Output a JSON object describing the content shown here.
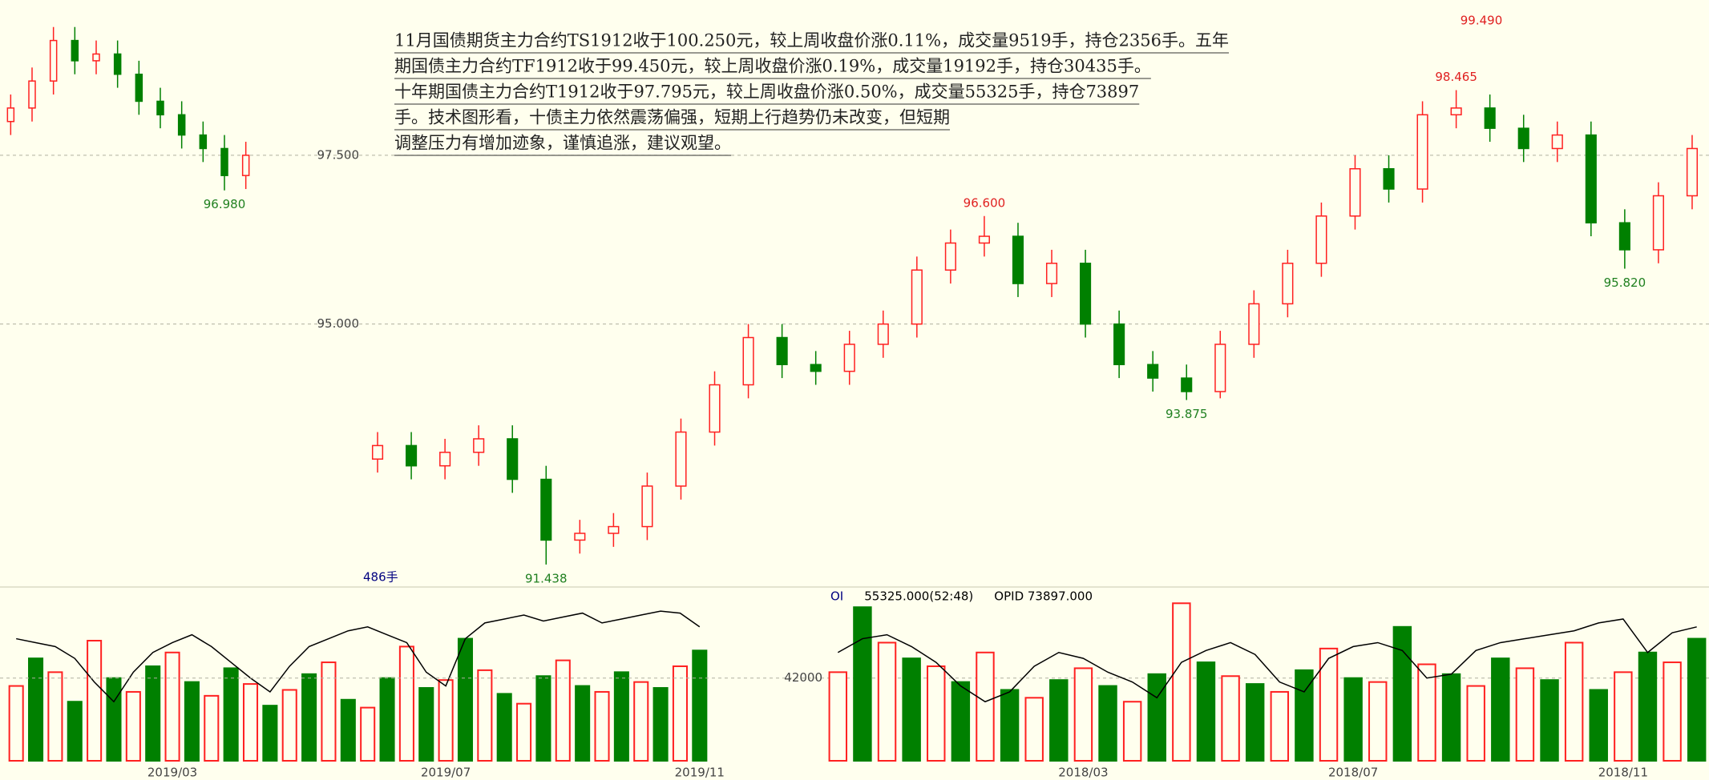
{
  "chart_data": [
    {
      "type": "candlestick",
      "open": [
        93.0,
        93.2,
        92.9,
        93.1,
        93.3,
        92.7,
        91.8,
        91.9,
        92.0,
        92.6,
        93.4,
        94.1,
        94.8,
        94.4,
        94.3,
        94.7,
        95.0,
        95.8,
        96.2,
        96.3,
        95.6,
        95.9,
        95.0,
        94.4,
        94.2,
        94.0,
        94.7,
        95.3,
        95.9,
        96.6,
        97.3,
        97.0,
        98.1,
        98.2,
        97.9,
        97.6,
        97.8,
        96.5,
        96.1,
        96.9
      ],
      "high": [
        93.4,
        93.4,
        93.3,
        93.5,
        93.5,
        92.9,
        92.1,
        92.2,
        92.8,
        93.6,
        94.3,
        95.0,
        95.0,
        94.6,
        94.9,
        95.2,
        96.0,
        96.4,
        96.6,
        96.5,
        96.1,
        96.1,
        95.2,
        94.6,
        94.4,
        94.9,
        95.5,
        96.1,
        96.8,
        97.5,
        97.5,
        98.3,
        98.465,
        98.4,
        98.1,
        98.0,
        98.0,
        96.7,
        97.1,
        97.8
      ],
      "low": [
        92.8,
        92.7,
        92.7,
        92.9,
        92.5,
        91.438,
        91.6,
        91.7,
        91.8,
        92.4,
        93.2,
        93.9,
        94.2,
        94.1,
        94.1,
        94.5,
        94.8,
        95.6,
        96.0,
        95.4,
        95.4,
        94.8,
        94.2,
        94.0,
        93.875,
        93.9,
        94.5,
        95.1,
        95.7,
        96.4,
        96.8,
        96.8,
        97.9,
        97.7,
        97.4,
        97.4,
        96.3,
        95.82,
        95.9,
        96.7
      ],
      "close": [
        93.2,
        92.9,
        93.1,
        93.3,
        92.7,
        91.8,
        91.9,
        92.0,
        92.6,
        93.4,
        94.1,
        94.8,
        94.4,
        94.3,
        94.7,
        95.0,
        95.8,
        96.2,
        96.3,
        95.6,
        95.9,
        95.0,
        94.4,
        94.2,
        94.0,
        94.7,
        95.3,
        95.9,
        96.6,
        97.3,
        97.0,
        98.1,
        98.2,
        97.9,
        97.6,
        97.8,
        96.5,
        96.1,
        96.9,
        97.6
      ],
      "up_color": "#ff2020",
      "down_color": "#008000",
      "ylim": [
        91.2,
        99.8
      ],
      "yticks": [
        {
          "value": 95,
          "label": "95.000"
        },
        {
          "value": 97.5,
          "label": "97.500"
        }
      ],
      "grid": true,
      "annotations": [
        {
          "text": "96.600",
          "value": 96.6
        },
        {
          "text": "93.875",
          "value": 93.875
        },
        {
          "text": "98.465",
          "value": 98.465
        },
        {
          "text": "95.820",
          "value": 95.82
        },
        {
          "text": "91.438",
          "value": 91.438
        },
        {
          "text": "99.490",
          "value": 99.49
        }
      ]
    },
    {
      "type": "candlestick",
      "open": [
        98.0,
        98.2,
        98.6,
        99.2,
        98.9,
        99.0,
        98.7,
        98.3,
        98.1,
        97.8,
        97.6,
        97.2
      ],
      "high": [
        98.4,
        98.8,
        99.4,
        99.4,
        99.2,
        99.2,
        98.9,
        98.5,
        98.3,
        98.0,
        97.8,
        97.7
      ],
      "low": [
        97.8,
        98.0,
        98.4,
        98.7,
        98.7,
        98.5,
        98.1,
        97.9,
        97.6,
        97.4,
        96.98,
        97.0
      ],
      "close": [
        98.2,
        98.6,
        99.2,
        98.9,
        99.0,
        98.7,
        98.3,
        98.1,
        97.8,
        97.6,
        97.2,
        97.5
      ],
      "up_color": "#ff2020",
      "down_color": "#008000",
      "ylim": [
        91.2,
        99.8
      ],
      "annotations": [
        {
          "text": "96.980",
          "value": 96.98
        }
      ]
    },
    {
      "type": "bar",
      "categories": [
        null,
        null,
        null,
        null,
        null,
        null,
        null,
        null,
        "2019/03",
        null,
        null,
        null,
        null,
        null,
        null,
        null,
        null,
        null,
        null,
        null,
        null,
        null,
        "2019/07",
        null,
        null,
        null,
        null,
        null,
        null,
        null,
        null,
        null,
        null,
        null,
        null,
        "2019/11"
      ],
      "values": [
        38000,
        52000,
        45000,
        30000,
        61000,
        42000,
        35000,
        48000,
        55000,
        40000,
        33000,
        47000,
        39000,
        28000,
        36000,
        44000,
        50000,
        31000,
        27000,
        42000,
        58000,
        37000,
        41000,
        62000,
        46000,
        34000,
        29000,
        43000,
        51000,
        38000,
        35000,
        45000,
        40000,
        37000,
        48000,
        56000
      ],
      "line": [
        62000,
        60000,
        58000,
        52000,
        40000,
        30000,
        45000,
        55000,
        60000,
        64000,
        58000,
        50000,
        42000,
        35000,
        48000,
        58000,
        62000,
        66000,
        68000,
        64000,
        60000,
        45000,
        38000,
        62000,
        70000,
        72000,
        74000,
        71000,
        73000,
        75000,
        70000,
        72000,
        74000,
        76000,
        75000,
        68000
      ],
      "colors": [
        "#ff2020",
        "#008000"
      ],
      "line_color": "#000000",
      "ylim": [
        0,
        85000
      ]
    },
    {
      "type": "bar",
      "categories": [
        null,
        null,
        null,
        null,
        null,
        null,
        null,
        null,
        null,
        null,
        "2018/03",
        null,
        null,
        null,
        null,
        null,
        null,
        null,
        null,
        null,
        null,
        "2018/07",
        null,
        null,
        null,
        null,
        null,
        null,
        null,
        null,
        null,
        null,
        "2018/11",
        null,
        null,
        null
      ],
      "values": [
        45000,
        78000,
        60000,
        52000,
        48000,
        40000,
        55000,
        36000,
        32000,
        41000,
        47000,
        38000,
        30000,
        44000,
        80000,
        50000,
        43000,
        39000,
        35000,
        46000,
        57000,
        42000,
        40000,
        68000,
        49000,
        44000,
        38000,
        52000,
        47000,
        41000,
        60000,
        36000,
        45000,
        55000,
        50000,
        62000
      ],
      "line": [
        55000,
        62000,
        64000,
        58000,
        50000,
        38000,
        30000,
        35000,
        48000,
        55000,
        52000,
        45000,
        40000,
        32000,
        50000,
        56000,
        60000,
        54000,
        40000,
        35000,
        52000,
        58000,
        60000,
        56000,
        42000,
        44000,
        56000,
        60000,
        62000,
        64000,
        66000,
        70000,
        72000,
        55000,
        65000,
        68000
      ],
      "colors": [
        "#ff2020",
        "#008000"
      ],
      "line_color": "#000000",
      "ylim": [
        0,
        85000
      ],
      "yticks": [
        42000
      ],
      "grid": true,
      "header": [
        "OI",
        "55325.000(52:48)",
        "OPID 73897.000"
      ]
    }
  ],
  "labels": [
    "486手"
  ],
  "text_block": [
    "11月国债期货主力合约TS1912收于100.250元，较上周收盘价涨0.11%，成交量9519手，持仓2356手。五年",
    "期国债主力合约TF1912收于99.450元，较上周收盘价涨0.19%，成交量19192手，持仓30435手。",
    "十年期国债主力合约T1912收于97.795元，较上周收盘价涨0.50%，成交量55325手，持仓73897",
    "手。技术图形看，十债主力依然震荡偏强，短期上行趋势仍未改变，但短期",
    "调整压力有增加迹象，谨慎追涨，建议观望。"
  ]
}
